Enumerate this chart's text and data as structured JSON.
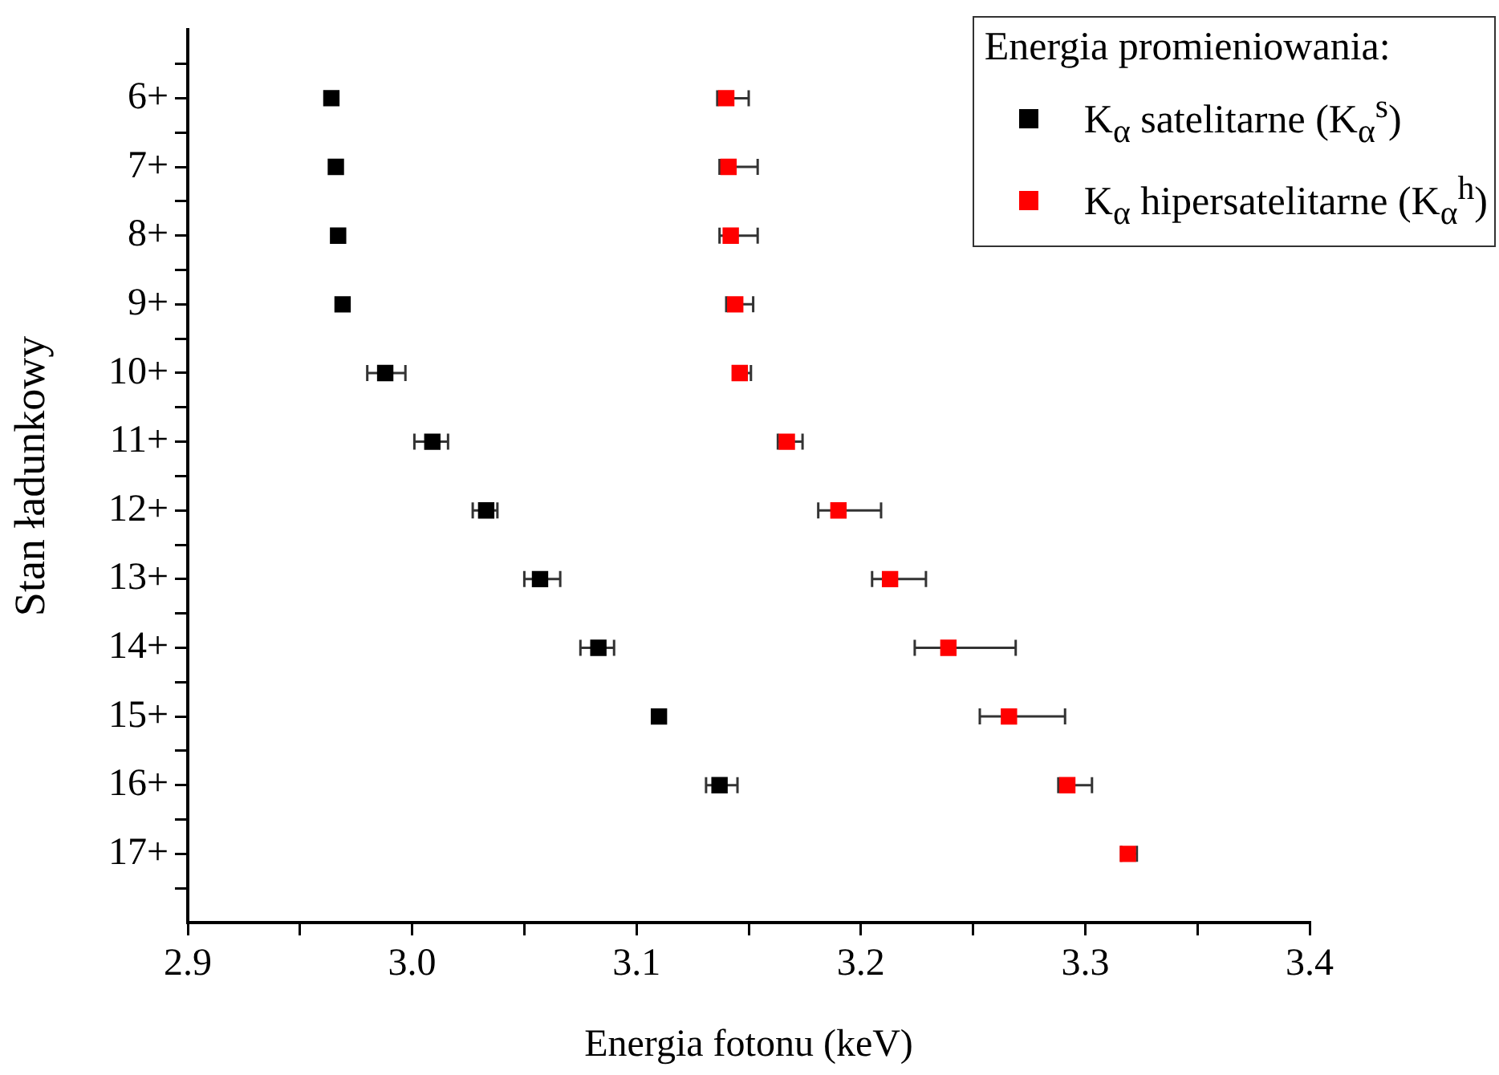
{
  "chart_data": {
    "type": "scatter",
    "orientation": "horizontal",
    "xlabel": "Energia fotonu (keV)",
    "ylabel": "Stan ładunkowy",
    "legend_title": "Energia promieniowania:",
    "legend": "top right",
    "marker": "square",
    "grid": false,
    "categories": [
      "6+",
      "7+",
      "8+",
      "9+",
      "10+",
      "11+",
      "12+",
      "13+",
      "14+",
      "15+",
      "16+",
      "17+"
    ],
    "xlim": [
      2.9,
      3.4
    ],
    "xticks": [
      2.9,
      {
        "value": 2.95,
        "label": null
      },
      {
        "value": 3.0,
        "label": "3.0"
      },
      {
        "value": 3.05,
        "label": null
      },
      3.1,
      {
        "value": 3.15,
        "label": null
      },
      3.2,
      {
        "value": 3.25,
        "label": null
      },
      3.3,
      {
        "value": 3.35,
        "label": null
      },
      3.4
    ],
    "series": [
      {
        "name": "K$_{α}$ satelitarne (K$_{α}$$^{s}$)",
        "color": "#000000",
        "values": [
          2.964,
          2.966,
          2.967,
          2.969,
          2.988,
          3.009,
          3.033,
          3.057,
          3.083,
          3.11,
          3.137,
          null
        ],
        "errors": [
          null,
          null,
          null,
          null,
          [
            2.98,
            2.997
          ],
          [
            3.001,
            3.016
          ],
          [
            3.027,
            3.038
          ],
          [
            3.05,
            3.066
          ],
          [
            3.075,
            3.09
          ],
          null,
          [
            3.131,
            3.145
          ],
          null
        ]
      },
      {
        "name": "K$_{α}$ hipersatelitarne (K$_{α}$$^{h}$)",
        "color": "#ff0000",
        "values": [
          3.14,
          3.141,
          3.142,
          3.144,
          3.146,
          3.167,
          3.19,
          3.213,
          3.239,
          3.266,
          3.292,
          3.319
        ],
        "errors": [
          [
            3.136,
            3.15
          ],
          [
            3.137,
            3.154
          ],
          [
            3.137,
            3.154
          ],
          [
            3.14,
            3.152
          ],
          [
            3.143,
            3.151
          ],
          [
            3.163,
            3.174
          ],
          [
            3.181,
            3.209
          ],
          [
            3.205,
            3.229
          ],
          [
            3.224,
            3.269
          ],
          [
            3.253,
            3.291
          ],
          [
            3.288,
            3.303
          ],
          [
            3.316,
            3.323
          ]
        ]
      }
    ]
  }
}
